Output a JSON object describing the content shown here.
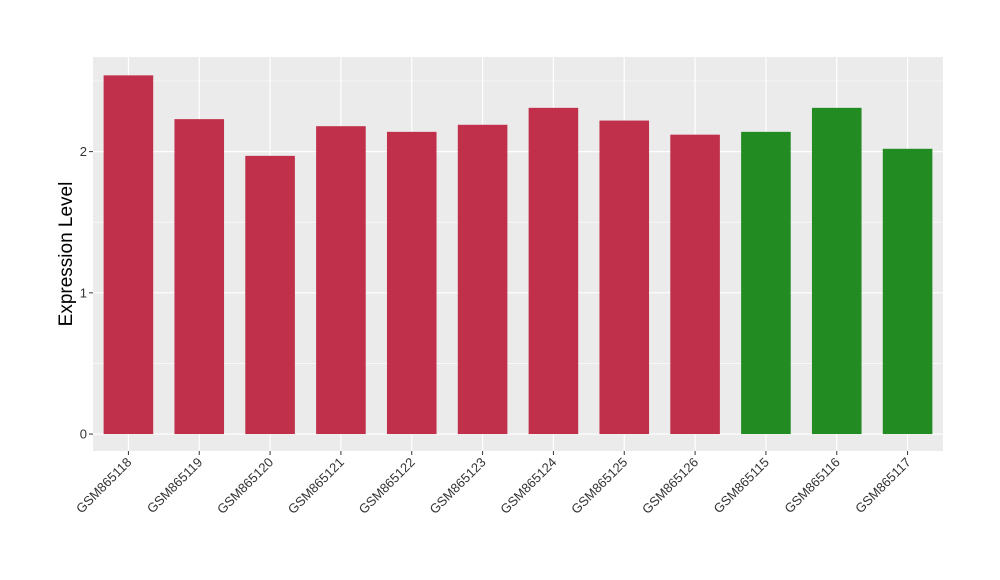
{
  "chart_data": {
    "type": "bar",
    "categories": [
      "GSM865118",
      "GSM865119",
      "GSM865120",
      "GSM865121",
      "GSM865122",
      "GSM865123",
      "GSM865124",
      "GSM865125",
      "GSM865126",
      "GSM865115",
      "GSM865116",
      "GSM865117"
    ],
    "values": [
      2.54,
      2.23,
      1.97,
      2.18,
      2.14,
      2.19,
      2.31,
      2.22,
      2.12,
      2.14,
      2.31,
      2.02
    ],
    "bar_colors": [
      "#c0304a",
      "#c0304a",
      "#c0304a",
      "#c0304a",
      "#c0304a",
      "#c0304a",
      "#c0304a",
      "#c0304a",
      "#c0304a",
      "#228b22",
      "#228b22",
      "#228b22"
    ],
    "title": "",
    "xlabel": "",
    "ylabel": "Expression Level",
    "ylim": [
      -0.12,
      2.67
    ],
    "yticks": [
      0,
      1,
      2
    ],
    "grid": true,
    "panel_background": "#ebebeb",
    "grid_color": "#ffffff"
  }
}
